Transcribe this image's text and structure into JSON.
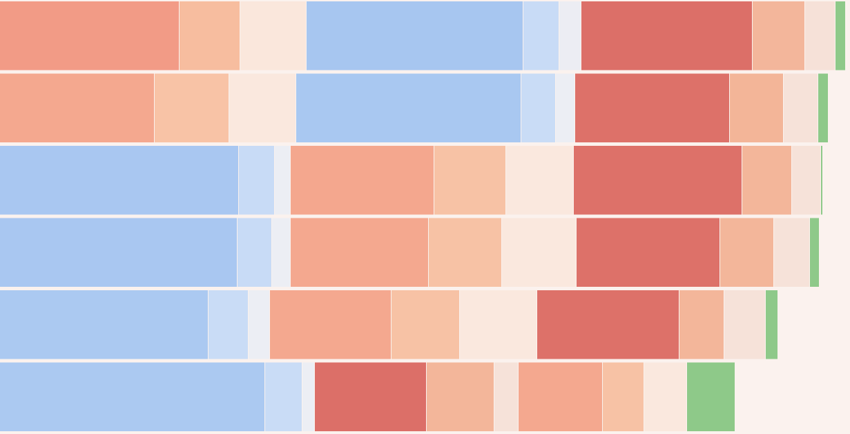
{
  "chart_data": {
    "type": "bar",
    "orientation": "horizontal",
    "stacked": true,
    "title": "",
    "xlabel": "",
    "ylabel": "",
    "xlim": [
      0,
      1231
    ],
    "legend": "none",
    "grid": false,
    "background_color": "#fbf2ee",
    "row_values": [
      [
        {
          "c": "#f29b86",
          "v": 260
        },
        {
          "c": "#f7bd9f",
          "v": 88
        },
        {
          "c": "#fae7dc",
          "v": 96
        },
        {
          "c": "#a7c6f0",
          "v": 314
        },
        {
          "c": "#c8dbf6",
          "v": 52
        },
        {
          "c": "#ecedf3",
          "v": 32
        },
        {
          "c": "#dc6f68",
          "v": 248
        },
        {
          "c": "#f3b69b",
          "v": 76
        },
        {
          "c": "#f6e1d8",
          "v": 44
        },
        {
          "c": "#8ec989",
          "v": 15
        }
      ],
      [
        {
          "c": "#f4a88f",
          "v": 224
        },
        {
          "c": "#f8c3a6",
          "v": 108
        },
        {
          "c": "#fae8de",
          "v": 97
        },
        {
          "c": "#a9c8f1",
          "v": 326
        },
        {
          "c": "#c9dcf6",
          "v": 50
        },
        {
          "c": "#eceef4",
          "v": 28
        },
        {
          "c": "#dd7169",
          "v": 224
        },
        {
          "c": "#f3b598",
          "v": 78
        },
        {
          "c": "#f6e2d9",
          "v": 50
        },
        {
          "c": "#8ec989",
          "v": 15
        }
      ],
      [
        {
          "c": "#a9c7f1",
          "v": 346
        },
        {
          "c": "#c8dbf6",
          "v": 52
        },
        {
          "c": "#eceef4",
          "v": 23
        },
        {
          "c": "#f4a78e",
          "v": 208
        },
        {
          "c": "#f7c2a5",
          "v": 104
        },
        {
          "c": "#fae8de",
          "v": 98
        },
        {
          "c": "#dd7169",
          "v": 244
        },
        {
          "c": "#f3b69a",
          "v": 72
        },
        {
          "c": "#f6e2d9",
          "v": 42
        },
        {
          "c": "#8ec989",
          "v": 3
        }
      ],
      [
        {
          "c": "#a9c7f1",
          "v": 344
        },
        {
          "c": "#c8dbf6",
          "v": 50
        },
        {
          "c": "#eceef4",
          "v": 27
        },
        {
          "c": "#f4a88f",
          "v": 200
        },
        {
          "c": "#f7c2a5",
          "v": 106
        },
        {
          "c": "#fae8de",
          "v": 108
        },
        {
          "c": "#dd7169",
          "v": 208
        },
        {
          "c": "#f3b69a",
          "v": 78
        },
        {
          "c": "#f6e2d9",
          "v": 52
        },
        {
          "c": "#8ec989",
          "v": 14
        }
      ],
      [
        {
          "c": "#abc9f1",
          "v": 302
        },
        {
          "c": "#c9dcf6",
          "v": 58
        },
        {
          "c": "#eceef4",
          "v": 31
        },
        {
          "c": "#f4a88f",
          "v": 176
        },
        {
          "c": "#f7c2a5",
          "v": 99
        },
        {
          "c": "#fae8de",
          "v": 112
        },
        {
          "c": "#dd7169",
          "v": 206
        },
        {
          "c": "#f3b69a",
          "v": 65
        },
        {
          "c": "#f6e2d9",
          "v": 60
        },
        {
          "c": "#8ec989",
          "v": 18
        }
      ],
      [
        {
          "c": "#abc9f1",
          "v": 384
        },
        {
          "c": "#c9dcf6",
          "v": 54
        },
        {
          "c": "#eceef4",
          "v": 18
        },
        {
          "c": "#dc6f68",
          "v": 162
        },
        {
          "c": "#f3b69a",
          "v": 98
        },
        {
          "c": "#f6e2d9",
          "v": 35
        },
        {
          "c": "#f4a88f",
          "v": 122
        },
        {
          "c": "#f7c2a5",
          "v": 60
        },
        {
          "c": "#fae8de",
          "v": 62
        },
        {
          "c": "#8ec989",
          "v": 70
        }
      ]
    ]
  }
}
